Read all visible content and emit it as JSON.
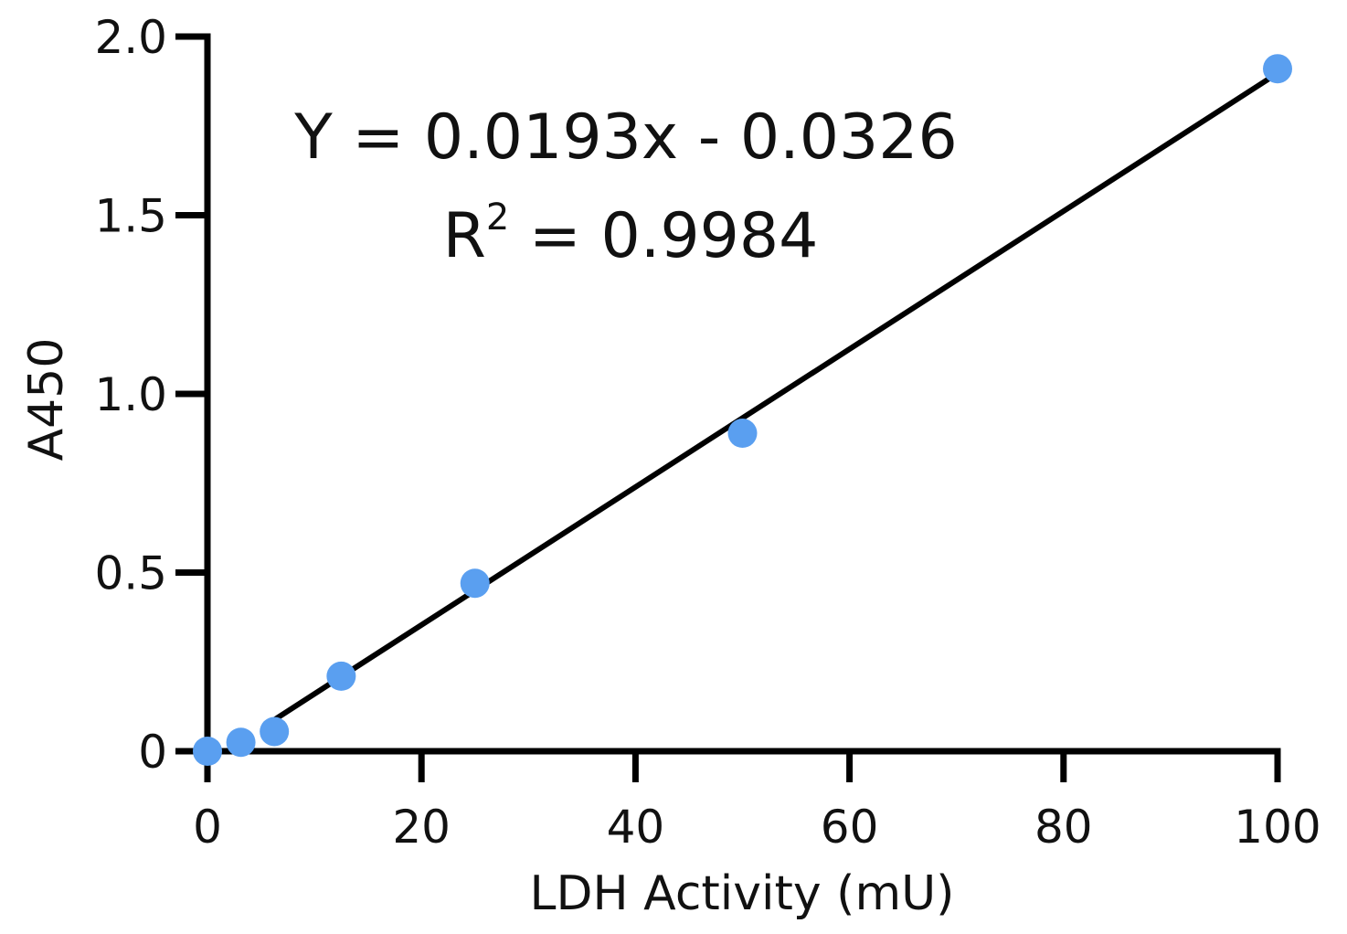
{
  "chart_data": {
    "type": "scatter",
    "x": [
      0,
      3.125,
      6.25,
      12.5,
      25,
      50,
      100
    ],
    "y": [
      0.0,
      0.025,
      0.055,
      0.21,
      0.47,
      0.89,
      1.91
    ],
    "xlabel": "LDH Activity (mU)",
    "ylabel": "A450",
    "xlim": [
      0,
      100
    ],
    "ylim": [
      0,
      2.0
    ],
    "x_ticks": [
      "0",
      "20",
      "40",
      "60",
      "80",
      "100"
    ],
    "y_ticks": [
      "0",
      "0.5",
      "1.0",
      "1.5",
      "2.0"
    ],
    "fit": {
      "slope": 0.0193,
      "intercept": -0.0326,
      "x_range": [
        6,
        100
      ]
    },
    "annotations": {
      "equation": "Y = 0.0193x - 0.0326",
      "r2_prefix": "R",
      "r2_sup": "2",
      "r2_suffix": " = 0.9984"
    },
    "marker_color": "#5a9ff0",
    "line_color": "#000000",
    "grid": false
  }
}
